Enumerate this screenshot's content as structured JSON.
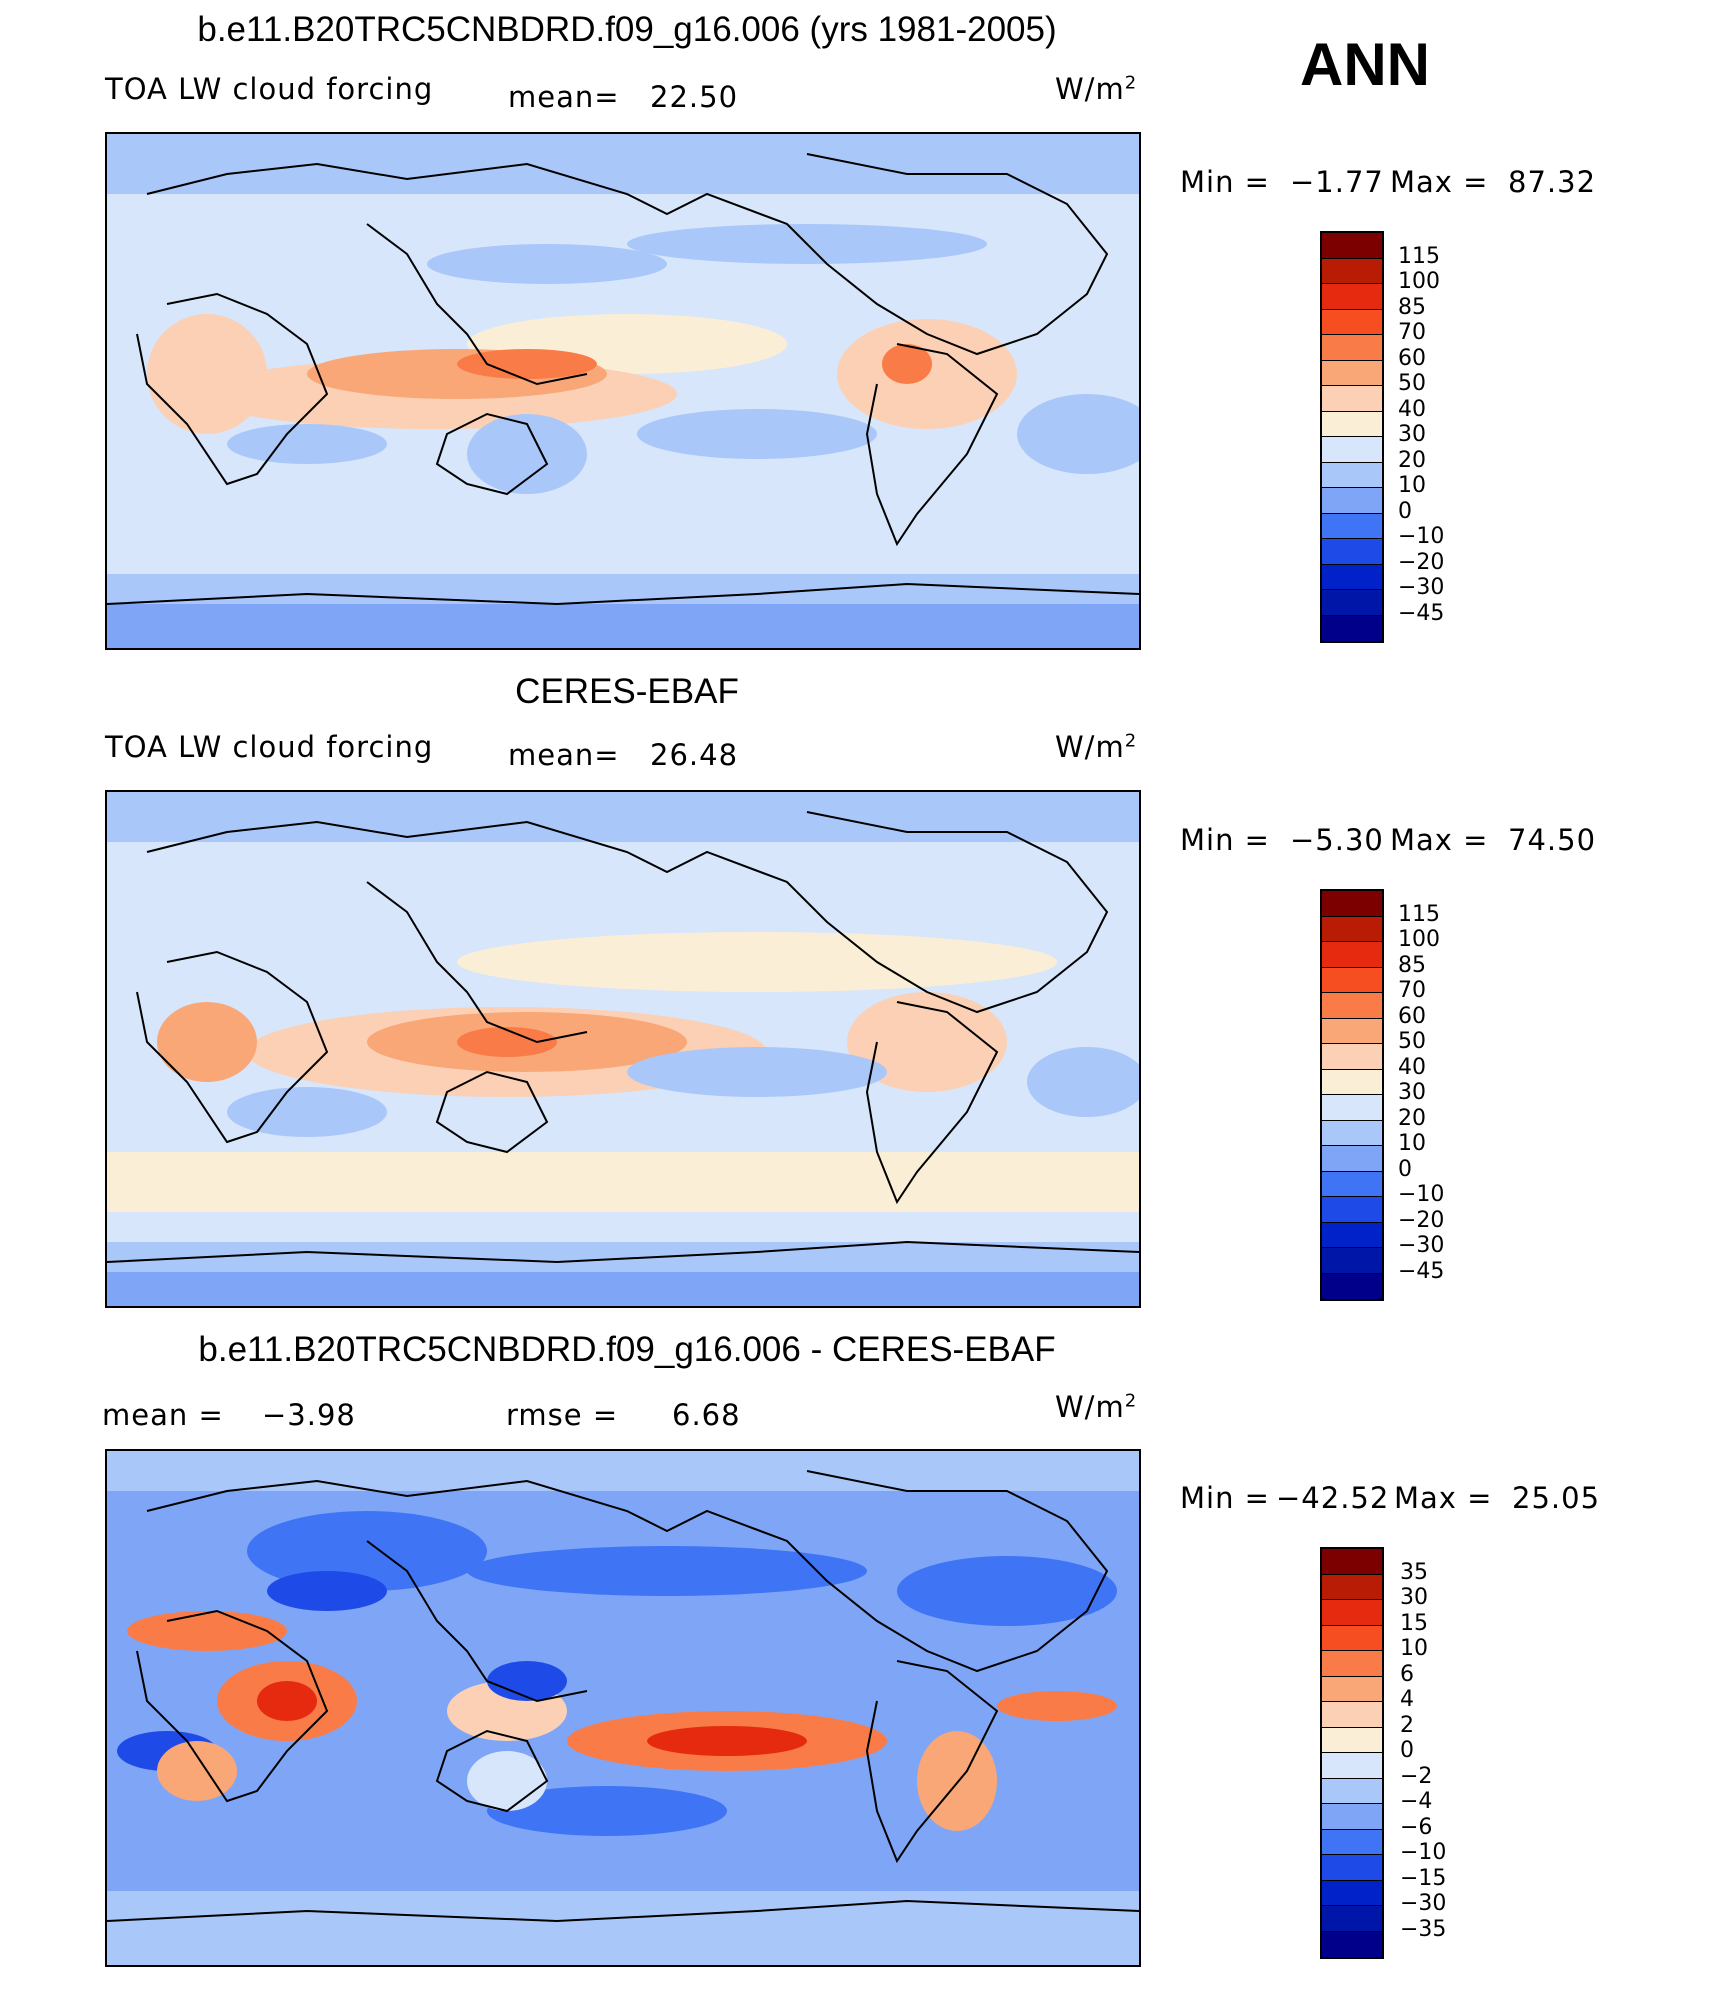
{
  "season": "ANN",
  "colors": {
    "abs_scale": [
      "#00008b",
      "#0016a8",
      "#0022c8",
      "#1e4be8",
      "#3f74f5",
      "#7fa6f6",
      "#aac7fa",
      "#d7e6fb",
      "#fbeed6",
      "#fbd0b4",
      "#f9a777",
      "#f97c48",
      "#f64e20",
      "#e52a10",
      "#b81c05",
      "#7d0000"
    ],
    "diff_scale": [
      "#00008b",
      "#0016a8",
      "#0022c8",
      "#1e4be8",
      "#3f74f5",
      "#7fa6f6",
      "#aac7fa",
      "#d7e6fb",
      "#fbeed6",
      "#fbd0b4",
      "#f9a777",
      "#f97c48",
      "#f64e20",
      "#e52a10",
      "#b81c05",
      "#7d0000"
    ]
  },
  "panels": [
    {
      "title": "b.e11.B20TRC5CNBDRD.f09_g16.006 (yrs 1981-2005)",
      "left_label": "TOA LW cloud forcing",
      "mean_label": "mean=",
      "mean_value": "22.50",
      "units": "W/m",
      "units_sup": "2",
      "min_label": "Min =",
      "min_value": "−1.77",
      "max_label": "Max =",
      "max_value": "87.32",
      "levels": [
        "115",
        "100",
        "85",
        "70",
        "60",
        "50",
        "40",
        "30",
        "20",
        "10",
        "0",
        "−10",
        "−20",
        "−30",
        "−45"
      ]
    },
    {
      "title": "CERES-EBAF",
      "left_label": "TOA LW cloud forcing",
      "mean_label": "mean=",
      "mean_value": "26.48",
      "units": "W/m",
      "units_sup": "2",
      "min_label": "Min =",
      "min_value": "−5.30",
      "max_label": "Max =",
      "max_value": "74.50",
      "levels": [
        "115",
        "100",
        "85",
        "70",
        "60",
        "50",
        "40",
        "30",
        "20",
        "10",
        "0",
        "−10",
        "−20",
        "−30",
        "−45"
      ]
    },
    {
      "title": "b.e11.B20TRC5CNBDRD.f09_g16.006 - CERES-EBAF",
      "left_label": "mean =",
      "left_value": "−3.98",
      "rmse_label": "rmse =",
      "rmse_value": "6.68",
      "units": "W/m",
      "units_sup": "2",
      "min_label": "Min =",
      "min_value": "−42.52",
      "max_label": "Max =",
      "max_value": "25.05",
      "levels": [
        "35",
        "30",
        "15",
        "10",
        "6",
        "4",
        "2",
        "0",
        "−2",
        "−4",
        "−6",
        "−10",
        "−15",
        "−30",
        "−35"
      ]
    }
  ]
}
